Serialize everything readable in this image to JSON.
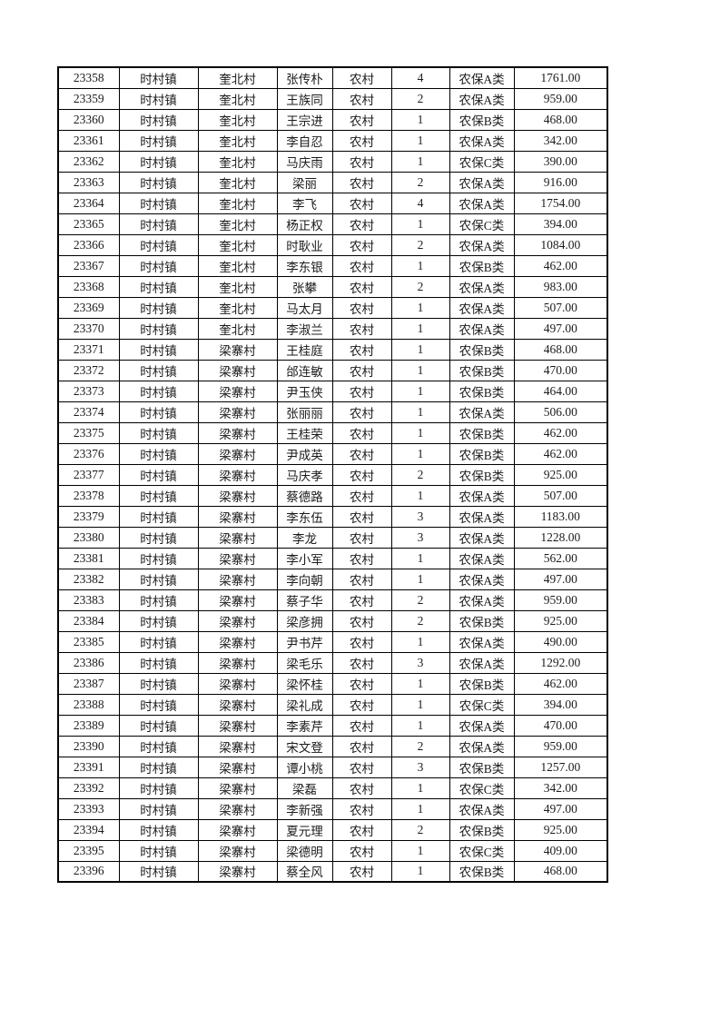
{
  "page": {
    "background_color": "#ffffff",
    "border_color": "#000000",
    "description": "续页表格（无表头）：社保/农保人员名单"
  },
  "table": {
    "rows": [
      [
        "23358",
        "时村镇",
        "奎北村",
        "张传朴",
        "农村",
        "4",
        "农保A类",
        "1761.00"
      ],
      [
        "23359",
        "时村镇",
        "奎北村",
        "王族同",
        "农村",
        "2",
        "农保A类",
        "959.00"
      ],
      [
        "23360",
        "时村镇",
        "奎北村",
        "王宗进",
        "农村",
        "1",
        "农保B类",
        "468.00"
      ],
      [
        "23361",
        "时村镇",
        "奎北村",
        "李自忍",
        "农村",
        "1",
        "农保A类",
        "342.00"
      ],
      [
        "23362",
        "时村镇",
        "奎北村",
        "马庆雨",
        "农村",
        "1",
        "农保C类",
        "390.00"
      ],
      [
        "23363",
        "时村镇",
        "奎北村",
        "梁丽",
        "农村",
        "2",
        "农保A类",
        "916.00"
      ],
      [
        "23364",
        "时村镇",
        "奎北村",
        "李飞",
        "农村",
        "4",
        "农保A类",
        "1754.00"
      ],
      [
        "23365",
        "时村镇",
        "奎北村",
        "杨正权",
        "农村",
        "1",
        "农保C类",
        "394.00"
      ],
      [
        "23366",
        "时村镇",
        "奎北村",
        "时耿业",
        "农村",
        "2",
        "农保A类",
        "1084.00"
      ],
      [
        "23367",
        "时村镇",
        "奎北村",
        "李东银",
        "农村",
        "1",
        "农保B类",
        "462.00"
      ],
      [
        "23368",
        "时村镇",
        "奎北村",
        "张攀",
        "农村",
        "2",
        "农保A类",
        "983.00"
      ],
      [
        "23369",
        "时村镇",
        "奎北村",
        "马太月",
        "农村",
        "1",
        "农保A类",
        "507.00"
      ],
      [
        "23370",
        "时村镇",
        "奎北村",
        "李淑兰",
        "农村",
        "1",
        "农保A类",
        "497.00"
      ],
      [
        "23371",
        "时村镇",
        "梁寨村",
        "王桂庭",
        "农村",
        "1",
        "农保B类",
        "468.00"
      ],
      [
        "23372",
        "时村镇",
        "梁寨村",
        "邰连敏",
        "农村",
        "1",
        "农保B类",
        "470.00"
      ],
      [
        "23373",
        "时村镇",
        "梁寨村",
        "尹玉侠",
        "农村",
        "1",
        "农保B类",
        "464.00"
      ],
      [
        "23374",
        "时村镇",
        "梁寨村",
        "张丽丽",
        "农村",
        "1",
        "农保A类",
        "506.00"
      ],
      [
        "23375",
        "时村镇",
        "梁寨村",
        "王桂荣",
        "农村",
        "1",
        "农保B类",
        "462.00"
      ],
      [
        "23376",
        "时村镇",
        "梁寨村",
        "尹成英",
        "农村",
        "1",
        "农保B类",
        "462.00"
      ],
      [
        "23377",
        "时村镇",
        "梁寨村",
        "马庆孝",
        "农村",
        "2",
        "农保B类",
        "925.00"
      ],
      [
        "23378",
        "时村镇",
        "梁寨村",
        "蔡德路",
        "农村",
        "1",
        "农保A类",
        "507.00"
      ],
      [
        "23379",
        "时村镇",
        "梁寨村",
        "李东伍",
        "农村",
        "3",
        "农保A类",
        "1183.00"
      ],
      [
        "23380",
        "时村镇",
        "梁寨村",
        "李龙",
        "农村",
        "3",
        "农保A类",
        "1228.00"
      ],
      [
        "23381",
        "时村镇",
        "梁寨村",
        "李小军",
        "农村",
        "1",
        "农保A类",
        "562.00"
      ],
      [
        "23382",
        "时村镇",
        "梁寨村",
        "李向朝",
        "农村",
        "1",
        "农保A类",
        "497.00"
      ],
      [
        "23383",
        "时村镇",
        "梁寨村",
        "蔡子华",
        "农村",
        "2",
        "农保A类",
        "959.00"
      ],
      [
        "23384",
        "时村镇",
        "梁寨村",
        "梁彦拥",
        "农村",
        "2",
        "农保B类",
        "925.00"
      ],
      [
        "23385",
        "时村镇",
        "梁寨村",
        "尹书芹",
        "农村",
        "1",
        "农保A类",
        "490.00"
      ],
      [
        "23386",
        "时村镇",
        "梁寨村",
        "梁毛乐",
        "农村",
        "3",
        "农保A类",
        "1292.00"
      ],
      [
        "23387",
        "时村镇",
        "梁寨村",
        "梁怀桂",
        "农村",
        "1",
        "农保B类",
        "462.00"
      ],
      [
        "23388",
        "时村镇",
        "梁寨村",
        "梁礼成",
        "农村",
        "1",
        "农保C类",
        "394.00"
      ],
      [
        "23389",
        "时村镇",
        "梁寨村",
        "李素芹",
        "农村",
        "1",
        "农保A类",
        "470.00"
      ],
      [
        "23390",
        "时村镇",
        "梁寨村",
        "宋文登",
        "农村",
        "2",
        "农保A类",
        "959.00"
      ],
      [
        "23391",
        "时村镇",
        "梁寨村",
        "谭小桃",
        "农村",
        "3",
        "农保B类",
        "1257.00"
      ],
      [
        "23392",
        "时村镇",
        "梁寨村",
        "梁磊",
        "农村",
        "1",
        "农保C类",
        "342.00"
      ],
      [
        "23393",
        "时村镇",
        "梁寨村",
        "李新强",
        "农村",
        "1",
        "农保A类",
        "497.00"
      ],
      [
        "23394",
        "时村镇",
        "梁寨村",
        "夏元理",
        "农村",
        "2",
        "农保B类",
        "925.00"
      ],
      [
        "23395",
        "时村镇",
        "梁寨村",
        "梁德明",
        "农村",
        "1",
        "农保C类",
        "409.00"
      ],
      [
        "23396",
        "时村镇",
        "梁寨村",
        "蔡全风",
        "农村",
        "1",
        "农保B类",
        "468.00"
      ]
    ]
  }
}
